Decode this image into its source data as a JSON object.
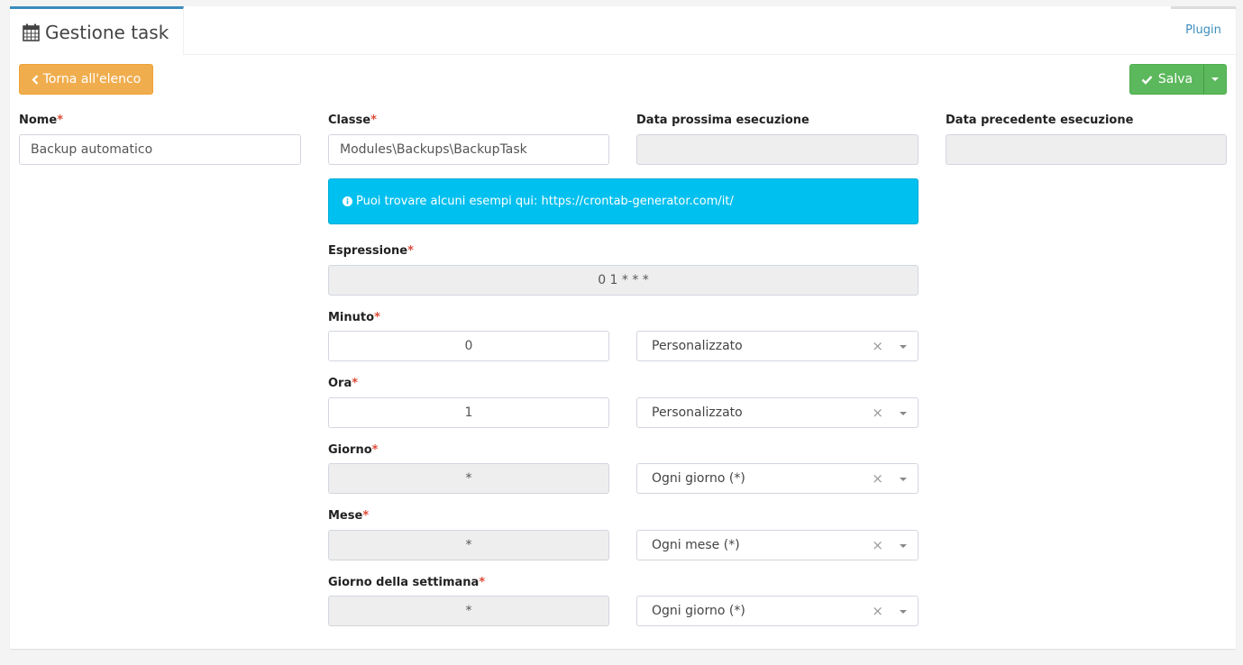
{
  "header": {
    "title": "Gestione task",
    "title_icon": "calendar-icon",
    "plugin_tab": "Plugin"
  },
  "toolbar": {
    "back_label": "Torna all'elenco",
    "save_label": "Salva"
  },
  "colors": {
    "accent": "#3c8dbc",
    "warning": "#f0ad4e",
    "success": "#5cb85c",
    "info": "#00c0ef",
    "required": "#dd4b39"
  },
  "fields": {
    "nome": {
      "label": "Nome",
      "required": "*",
      "value": "Backup automatico"
    },
    "classe": {
      "label": "Classe",
      "required": "*",
      "value": "Modules\\Backups\\BackupTask"
    },
    "next": {
      "label": "Data prossima esecuzione",
      "value": ""
    },
    "prev": {
      "label": "Data precedente esecuzione",
      "value": ""
    },
    "info": "Puoi trovare alcuni esempi qui: https://crontab-generator.com/it/",
    "espressione": {
      "label": "Espressione",
      "required": "*",
      "value": "0 1 * * *"
    },
    "minuto": {
      "label": "Minuto",
      "required": "*",
      "value": "0",
      "select": "Personalizzato"
    },
    "ora": {
      "label": "Ora",
      "required": "*",
      "value": "1",
      "select": "Personalizzato"
    },
    "giorno": {
      "label": "Giorno",
      "required": "*",
      "value": "*",
      "select": "Ogni giorno (*)"
    },
    "mese": {
      "label": "Mese",
      "required": "*",
      "value": "*",
      "select": "Ogni mese (*)"
    },
    "settimana": {
      "label": "Giorno della settimana",
      "required": "*",
      "value": "*",
      "select": "Ogni giorno (*)"
    }
  },
  "clear_glyph": "×"
}
